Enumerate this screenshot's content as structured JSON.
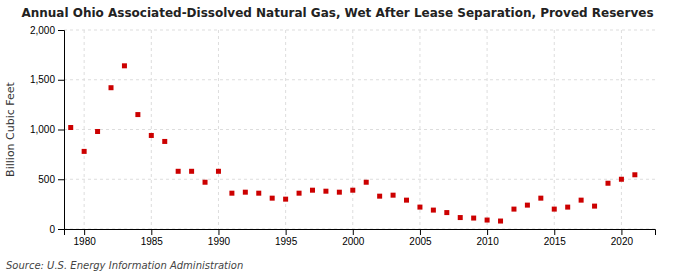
{
  "chart_data": {
    "type": "scatter",
    "title": "Annual Ohio Associated-Dissolved Natural Gas, Wet After Lease Separation, Proved Reserves",
    "ylabel": "Billion Cubic Feet",
    "annotations": [
      "Source: U.S. Energy Information Administration"
    ],
    "x": [
      1979,
      1980,
      1981,
      1982,
      1983,
      1984,
      1985,
      1986,
      1987,
      1988,
      1989,
      1990,
      1991,
      1992,
      1993,
      1994,
      1995,
      1996,
      1997,
      1998,
      1999,
      2000,
      2001,
      2002,
      2003,
      2004,
      2005,
      2006,
      2007,
      2008,
      2009,
      2010,
      2011,
      2012,
      2013,
      2014,
      2015,
      2016,
      2017,
      2018,
      2019,
      2020,
      2021
    ],
    "values": [
      1020,
      780,
      980,
      1420,
      1640,
      1150,
      940,
      880,
      580,
      580,
      470,
      580,
      360,
      370,
      360,
      310,
      300,
      360,
      390,
      380,
      370,
      390,
      470,
      330,
      340,
      290,
      220,
      190,
      165,
      115,
      110,
      90,
      80,
      200,
      240,
      310,
      200,
      220,
      290,
      230,
      460,
      500,
      545
    ],
    "color": "#cc0000",
    "marker": "square",
    "xlim": [
      1978.5,
      2022.5
    ],
    "ylim": [
      0,
      2000
    ],
    "xticks": [
      1980,
      1985,
      1990,
      1995,
      2000,
      2005,
      2010,
      2015,
      2020
    ],
    "yticks": [
      0,
      500,
      {
        "value": 1000,
        "label": "1,000"
      },
      {
        "value": 1500,
        "label": "1,500"
      },
      {
        "value": 2000,
        "label": "2,000"
      }
    ],
    "grid": true
  }
}
